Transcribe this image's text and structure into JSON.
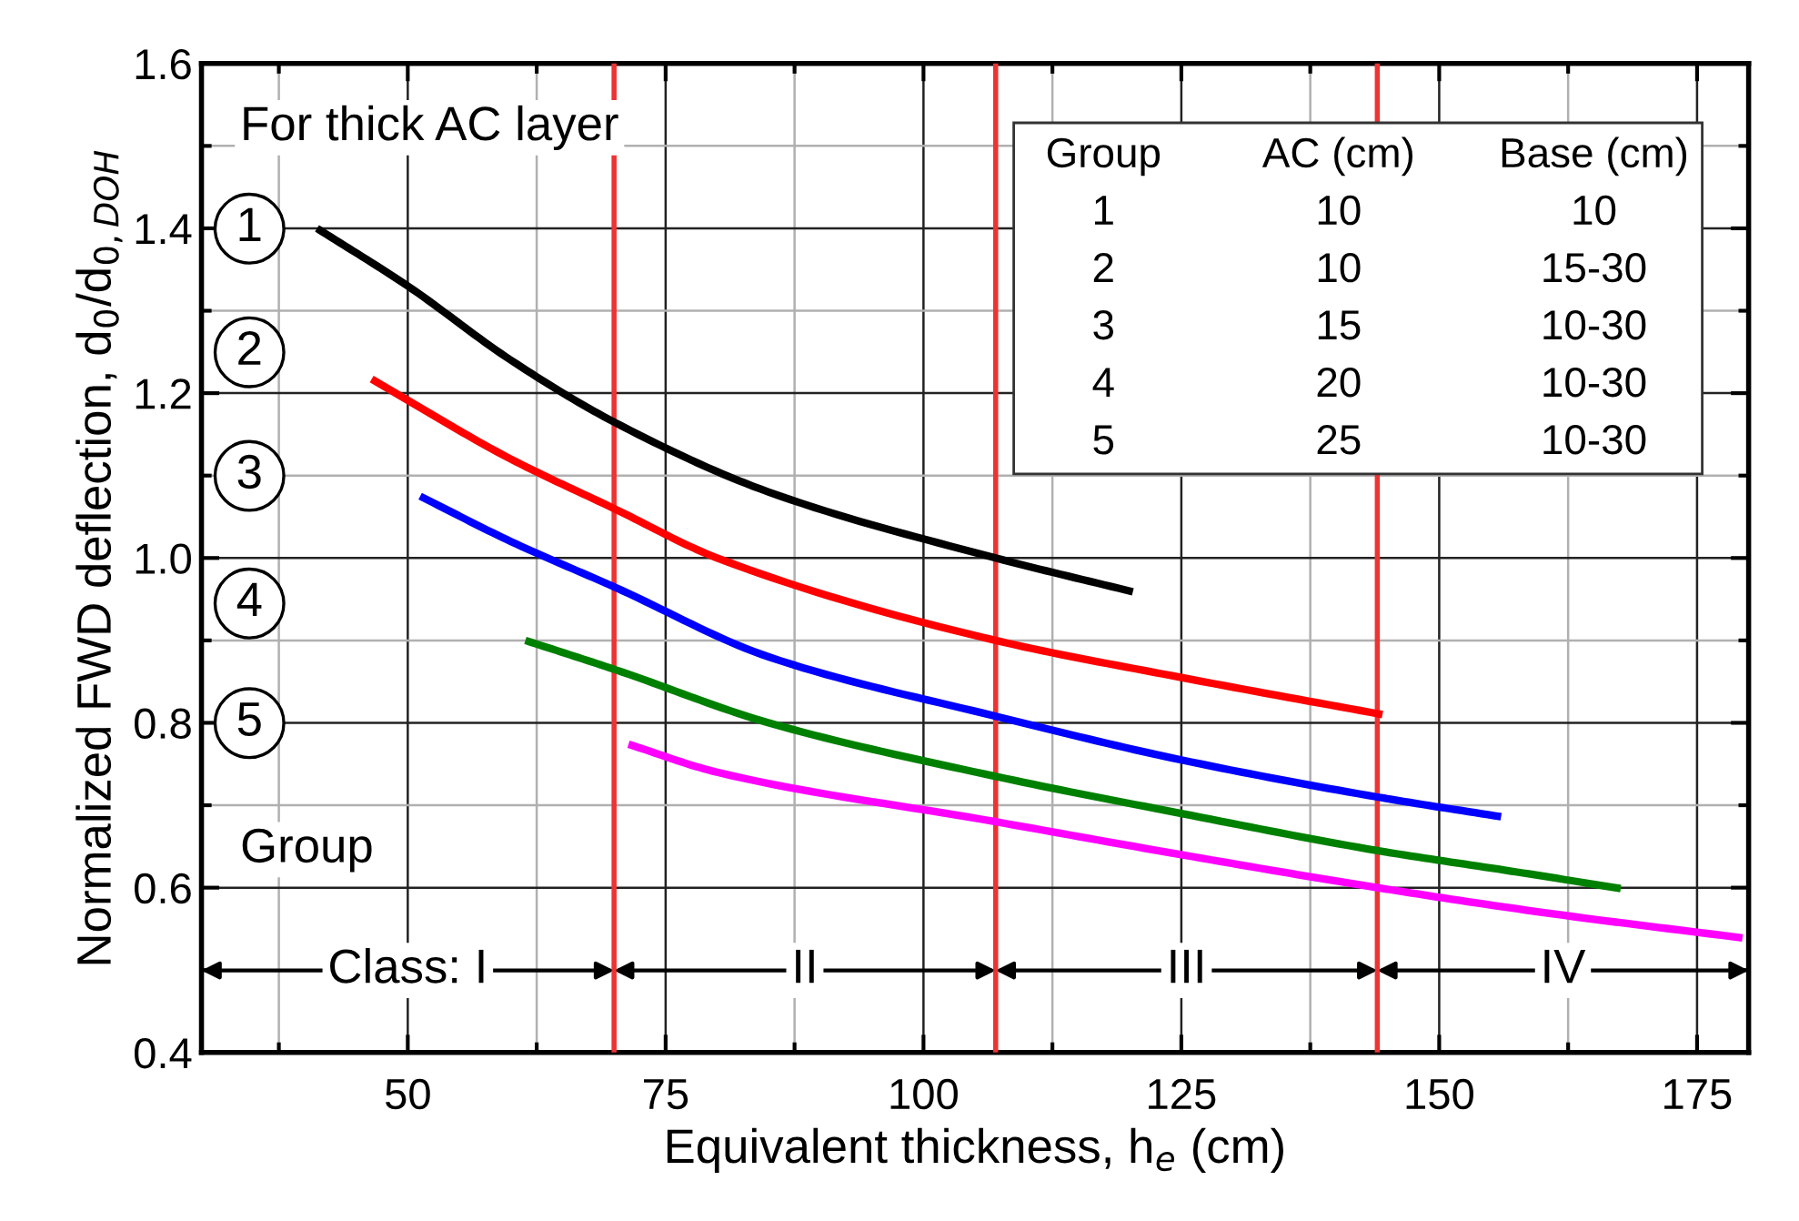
{
  "chart_data": {
    "type": "line",
    "xlabel": "Equivalent thickness, h$_{e}$ (cm)",
    "ylabel": "Normalized FWD deflection, d$_{0}$/d$_{0,DOH}$",
    "xlim": [
      30,
      180
    ],
    "xticks": [
      50,
      75,
      100,
      125,
      150,
      175
    ],
    "ylim": [
      0.4,
      1.6
    ],
    "yticks": [
      0.4,
      0.6,
      0.8,
      {
        "value": 1.0,
        "label": "1.0"
      },
      1.2,
      1.4,
      1.6
    ],
    "grid": true,
    "line_style": "solid",
    "series": [
      {
        "color": "#000000",
        "x": [
          41.2,
          50,
          60,
          70,
          85,
          107,
          120.3
        ],
        "values": [
          1.4,
          1.33,
          1.24,
          1.165,
          1.08,
          1.0,
          0.959
        ]
      },
      {
        "color": "#ff0000",
        "x": [
          46.5,
          60,
          70,
          80,
          107,
          125,
          144.5
        ],
        "values": [
          1.217,
          1.12,
          1.06,
          1.0,
          0.9,
          0.855,
          0.81
        ]
      },
      {
        "color": "#0000ff",
        "x": [
          51.2,
          60,
          70,
          85,
          107,
          125,
          144,
          156
        ],
        "values": [
          1.075,
          1.02,
          0.965,
          0.88,
          0.808,
          0.755,
          0.71,
          0.686
        ]
      },
      {
        "color": "#008000",
        "x": [
          61.4,
          70,
          85,
          107,
          125,
          144,
          157,
          167.6
        ],
        "values": [
          0.9,
          0.865,
          0.8,
          0.735,
          0.69,
          0.645,
          0.62,
          0.599
        ]
      },
      {
        "color": "#ff00ff",
        "x": [
          71.4,
          80,
          107,
          125,
          144,
          160,
          179.4
        ],
        "values": [
          0.774,
          0.74,
          0.68,
          0.64,
          0.6,
          0.57,
          0.539
        ]
      }
    ],
    "ref_lines": [
      {
        "axis": "x",
        "value": 70,
        "color": "#ee3333"
      },
      {
        "axis": "x",
        "value": 107,
        "color": "#ee3333"
      },
      {
        "axis": "x",
        "value": 144,
        "color": "#ee3333"
      }
    ],
    "annotations": [
      "Class: I",
      "II",
      "III",
      "IV",
      "For thick AC layer",
      "1",
      "2",
      "3",
      "4",
      "5",
      "Group",
      "Group",
      "AC (cm)",
      "Base (cm)",
      "1",
      "10",
      "10",
      "2",
      "10",
      "15-30",
      "3",
      "15",
      "10-30",
      "4",
      "20",
      "10-30",
      "5",
      "25",
      "10-30"
    ]
  }
}
